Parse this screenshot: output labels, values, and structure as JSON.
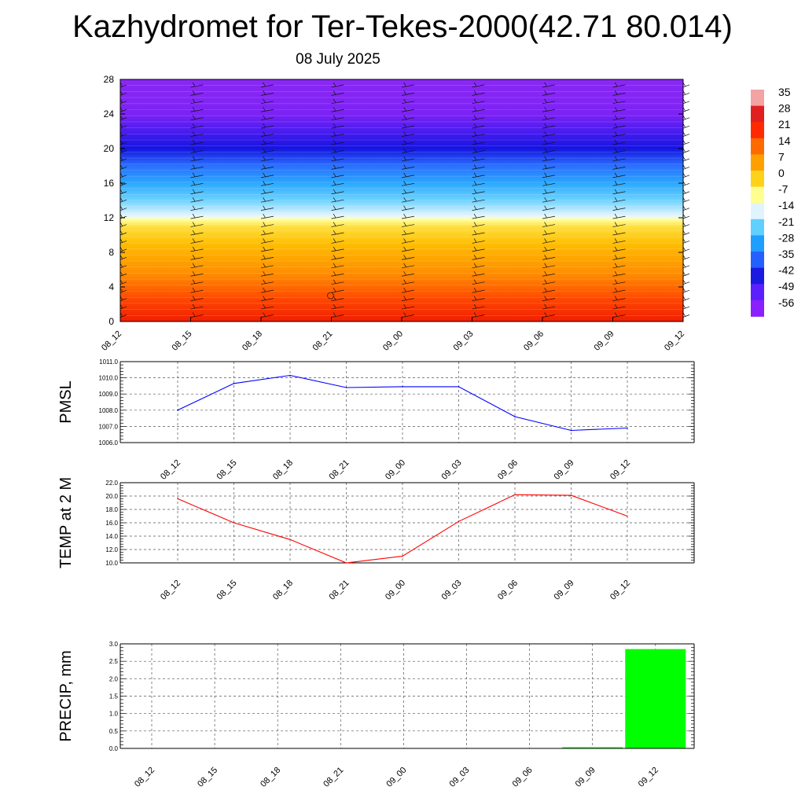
{
  "page": {
    "title": "Kazhydromet for Ter-Tekes-2000(42.71 80.014)",
    "subtitle": "08 July 2025"
  },
  "chart_data": [
    {
      "type": "heatmap",
      "title": "",
      "xlabel": "",
      "ylabel": "",
      "x_ticks": [
        "08_12",
        "08_15",
        "08_18",
        "08_21",
        "09_00",
        "09_03",
        "09_06",
        "09_09",
        "09_12"
      ],
      "y_ticks": [
        0,
        4,
        8,
        12,
        16,
        20,
        24,
        28
      ],
      "ylim": [
        0,
        28
      ],
      "colorbar": {
        "labels": [
          35,
          28,
          21,
          14,
          7,
          0,
          -7,
          -14,
          -21,
          -28,
          -35,
          -42,
          -49,
          -56
        ],
        "colors": [
          "#f4a3a3",
          "#e02020",
          "#ff2a00",
          "#ff6a00",
          "#ffa000",
          "#ffd21a",
          "#ffff90",
          "#e0f4ff",
          "#5fd0ff",
          "#1e9fff",
          "#2460ff",
          "#1a1ae0",
          "#5a20ff",
          "#8a20ff"
        ]
      },
      "wind_barbs": true
    },
    {
      "type": "line",
      "ylabel": "PMSL",
      "x": [
        "08_12",
        "08_15",
        "08_18",
        "08_21",
        "09_00",
        "09_03",
        "09_06",
        "09_09",
        "09_12"
      ],
      "series": [
        {
          "values": [
            1008.0,
            1009.65,
            1010.15,
            1009.4,
            1009.45,
            1009.45,
            1007.6,
            1006.75,
            1006.9
          ],
          "color": "#0000ff"
        }
      ],
      "ylim": [
        1006.0,
        1011.0
      ],
      "y_ticks": [
        "1006.0",
        "1007.0",
        "1008.0",
        "1009.0",
        "1010.0",
        "1011.0"
      ],
      "grid": true
    },
    {
      "type": "line",
      "ylabel": "TEMP at 2 M",
      "x": [
        "08_12",
        "08_15",
        "08_18",
        "08_21",
        "09_00",
        "09_03",
        "09_06",
        "09_09",
        "09_12"
      ],
      "series": [
        {
          "values": [
            19.6,
            16.0,
            13.5,
            10.0,
            11.0,
            16.2,
            20.2,
            20.1,
            17.0
          ],
          "color": "#ff0000"
        }
      ],
      "ylim": [
        10.0,
        22.0
      ],
      "y_ticks": [
        "10.0",
        "12.0",
        "14.0",
        "16.0",
        "18.0",
        "20.0",
        "22.0"
      ],
      "grid": true
    },
    {
      "type": "bar",
      "ylabel": "PRECIP, mm",
      "categories": [
        "08_12",
        "08_15",
        "08_18",
        "08_21",
        "09_00",
        "09_03",
        "09_06",
        "09_09",
        "09_12"
      ],
      "values": [
        0,
        0,
        0,
        0,
        0,
        0,
        0,
        0.03,
        2.85
      ],
      "color": "#00ff00",
      "ylim": [
        0,
        3.0
      ],
      "y_ticks": [
        "0.0",
        "0.5",
        "1.0",
        "1.5",
        "2.0",
        "2.5",
        "3.0"
      ],
      "grid": true
    }
  ]
}
